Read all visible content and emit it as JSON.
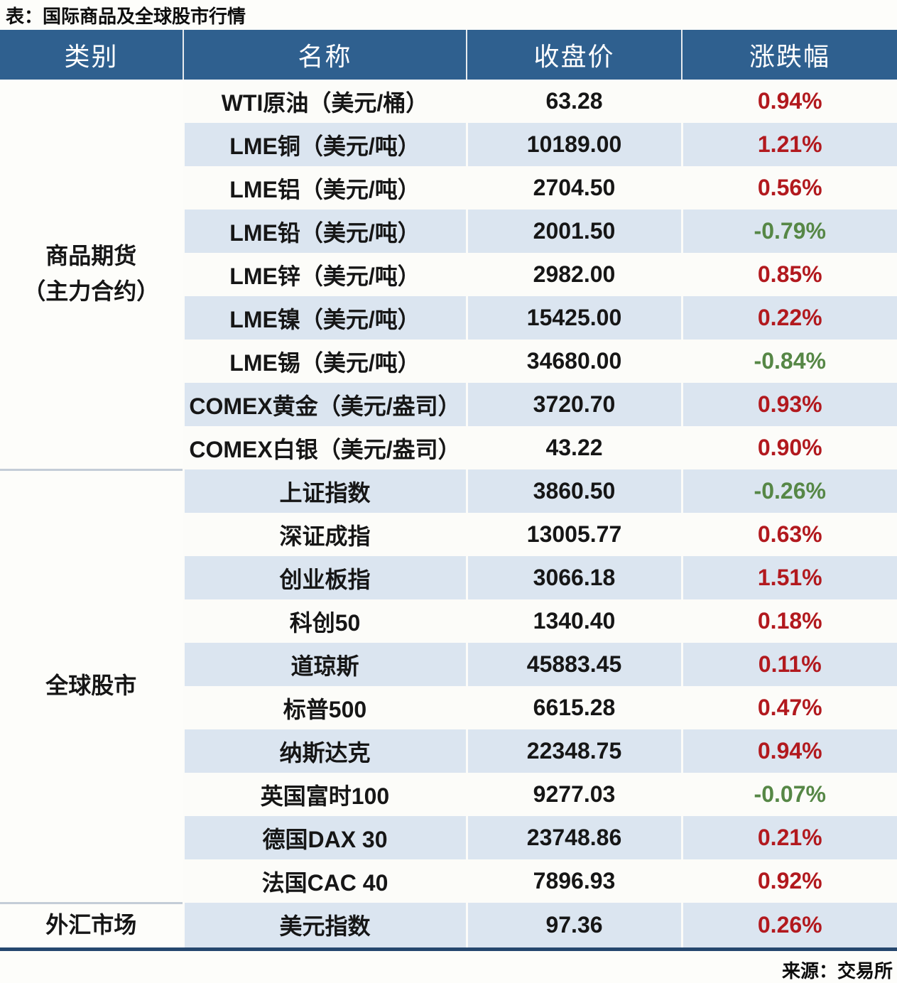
{
  "title": "表：国际商品及全球股市行情",
  "source": "来源：交易所",
  "colors": {
    "page_bg": "#fdfdfa",
    "header_bg": "#2f608f",
    "row_white": "#fcfcf9",
    "row_blue": "#dbe5f0",
    "section_divider": "#c4cdd7",
    "bottom_border": "#25476e",
    "up_red": "#b2191e",
    "down_green": "#568746"
  },
  "chart_data": {
    "type": "table",
    "title": "表：国际商品及全球股市行情",
    "source": "来源：交易所",
    "columns": [
      "类别",
      "名称",
      "收盘价",
      "涨跌幅"
    ],
    "sections": [
      {
        "category": "商品期货（主力合约）",
        "category_lines": [
          "商品期货",
          "（主力合约）"
        ],
        "rows": [
          {
            "name": "WTI原油（美元/桶）",
            "close": "63.28",
            "change": "0.94%",
            "dir": "up"
          },
          {
            "name": "LME铜（美元/吨）",
            "close": "10189.00",
            "change": "1.21%",
            "dir": "up"
          },
          {
            "name": "LME铝（美元/吨）",
            "close": "2704.50",
            "change": "0.56%",
            "dir": "up"
          },
          {
            "name": "LME铅（美元/吨）",
            "close": "2001.50",
            "change": "-0.79%",
            "dir": "down"
          },
          {
            "name": "LME锌（美元/吨）",
            "close": "2982.00",
            "change": "0.85%",
            "dir": "up"
          },
          {
            "name": "LME镍（美元/吨）",
            "close": "15425.00",
            "change": "0.22%",
            "dir": "up"
          },
          {
            "name": "LME锡（美元/吨）",
            "close": "34680.00",
            "change": "-0.84%",
            "dir": "down"
          },
          {
            "name": "COMEX黄金（美元/盎司）",
            "close": "3720.70",
            "change": "0.93%",
            "dir": "up"
          },
          {
            "name": "COMEX白银（美元/盎司）",
            "close": "43.22",
            "change": "0.90%",
            "dir": "up"
          }
        ]
      },
      {
        "category": "全球股市",
        "category_lines": [
          "全球股市"
        ],
        "rows": [
          {
            "name": "上证指数",
            "close": "3860.50",
            "change": "-0.26%",
            "dir": "down"
          },
          {
            "name": "深证成指",
            "close": "13005.77",
            "change": "0.63%",
            "dir": "up"
          },
          {
            "name": "创业板指",
            "close": "3066.18",
            "change": "1.51%",
            "dir": "up"
          },
          {
            "name": "科创50",
            "close": "1340.40",
            "change": "0.18%",
            "dir": "up"
          },
          {
            "name": "道琼斯",
            "close": "45883.45",
            "change": "0.11%",
            "dir": "up"
          },
          {
            "name": "标普500",
            "close": "6615.28",
            "change": "0.47%",
            "dir": "up"
          },
          {
            "name": "纳斯达克",
            "close": "22348.75",
            "change": "0.94%",
            "dir": "up"
          },
          {
            "name": "英国富时100",
            "close": "9277.03",
            "change": "-0.07%",
            "dir": "down"
          },
          {
            "name": "德国DAX 30",
            "close": "23748.86",
            "change": "0.21%",
            "dir": "up"
          },
          {
            "name": "法国CAC 40",
            "close": "7896.93",
            "change": "0.92%",
            "dir": "up"
          }
        ]
      },
      {
        "category": "外汇市场",
        "category_lines": [
          "外汇市场"
        ],
        "rows": [
          {
            "name": "美元指数",
            "close": "97.36",
            "change": "0.26%",
            "dir": "up"
          }
        ]
      }
    ]
  }
}
